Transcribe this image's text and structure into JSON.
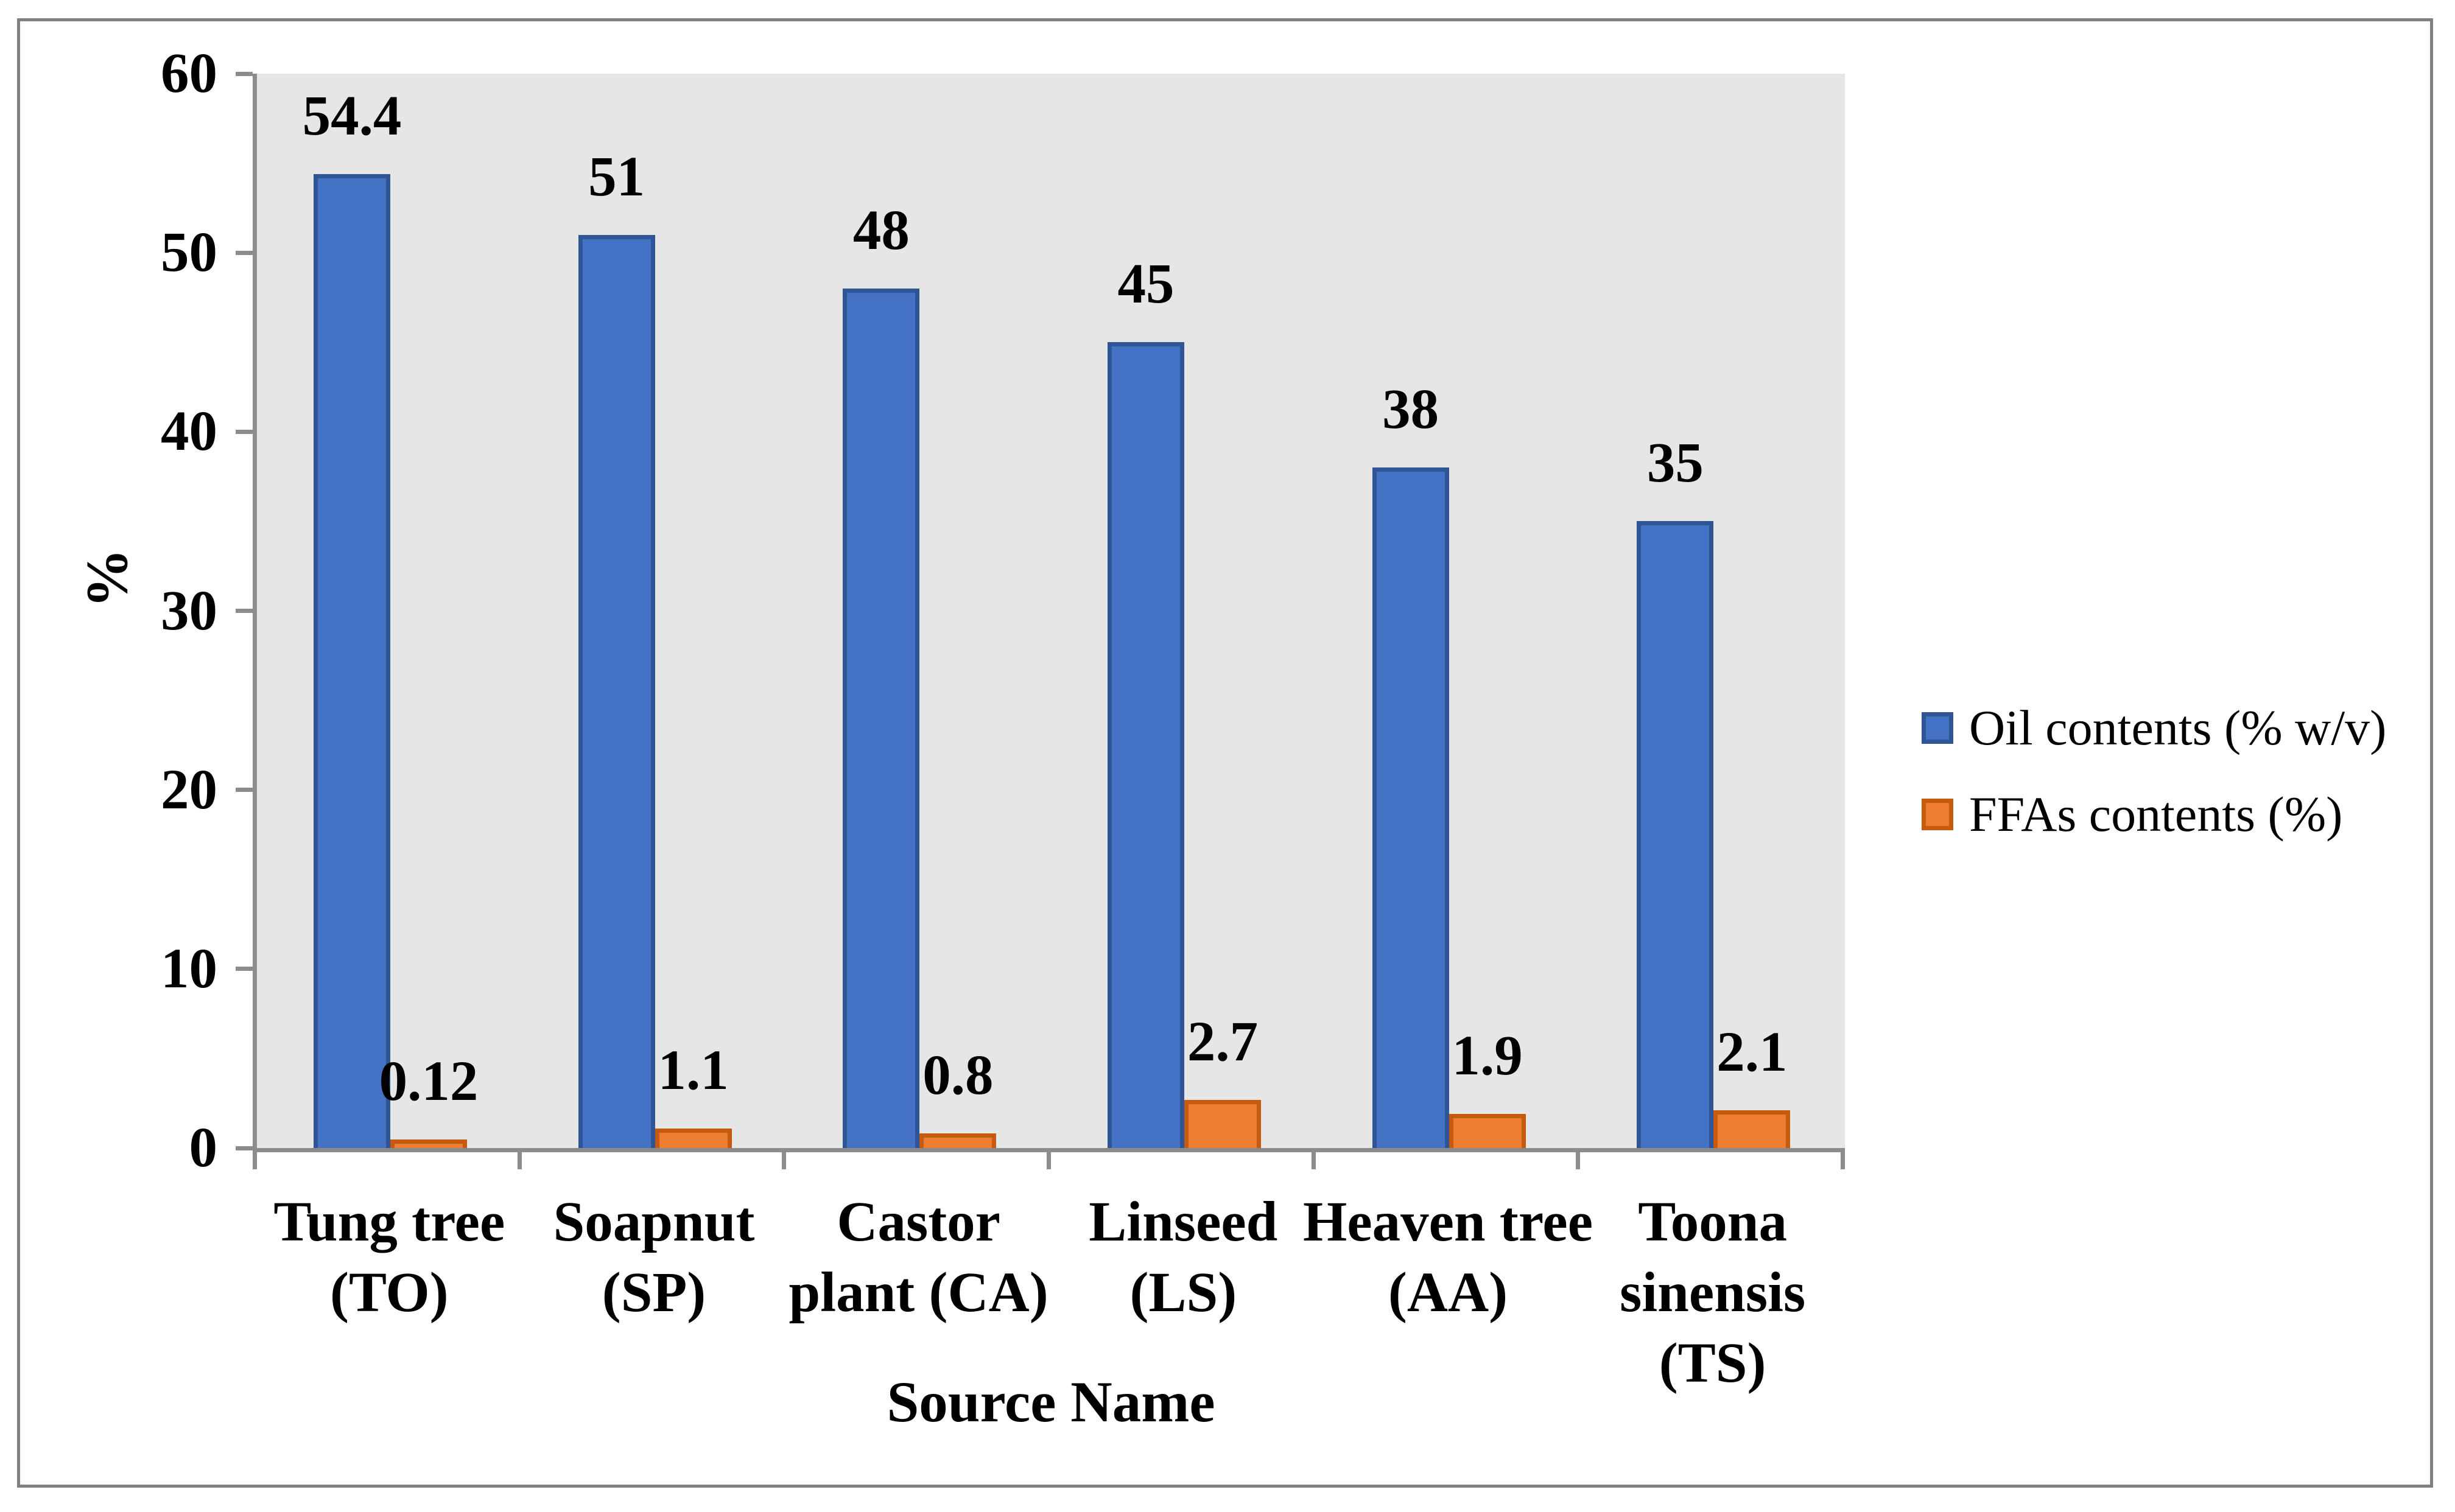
{
  "chart_data": {
    "type": "bar",
    "title": "",
    "xlabel": "Source Name",
    "ylabel": "%",
    "ylim": [
      0,
      60
    ],
    "yticks": [
      "0",
      "10",
      "20",
      "30",
      "40",
      "50",
      "60"
    ],
    "grid": false,
    "legend_position": "right-middle",
    "categories": [
      {
        "id": "tung-tree",
        "lines": [
          "Tung tree",
          "(TO)"
        ]
      },
      {
        "id": "soapnut",
        "lines": [
          "Soapnut",
          "(SP)"
        ]
      },
      {
        "id": "castor-plant",
        "lines": [
          "Castor",
          "plant (CA)"
        ]
      },
      {
        "id": "linseed",
        "lines": [
          "Linseed",
          "(LS)"
        ]
      },
      {
        "id": "heaven-tree",
        "lines": [
          "Heaven tree",
          "(AA)"
        ]
      },
      {
        "id": "toona-sinensis",
        "lines": [
          "Toona",
          "sinensis",
          "(TS)"
        ]
      }
    ],
    "series": [
      {
        "name": "Oil contents (% w/v)",
        "values": [
          54.4,
          51,
          48,
          45,
          38,
          35
        ],
        "value_labels": [
          "54.4",
          "51",
          "48",
          "45",
          "38",
          "35"
        ],
        "fill_color": "#4472C4",
        "border_color": "#2F5597"
      },
      {
        "name": "FFAs contents (%)",
        "values": [
          0.12,
          1.1,
          0.8,
          2.7,
          1.9,
          2.1
        ],
        "value_labels": [
          "0.12",
          "1.1",
          "0.8",
          "2.7",
          "1.9",
          "2.1"
        ],
        "fill_color": "#ED7D31",
        "border_color": "#C55A11"
      }
    ],
    "colors": {
      "plot_background": "#E6E6E6",
      "axis_line": "#8C8C8C",
      "figure_border": "#808080",
      "text": "#000000"
    }
  }
}
